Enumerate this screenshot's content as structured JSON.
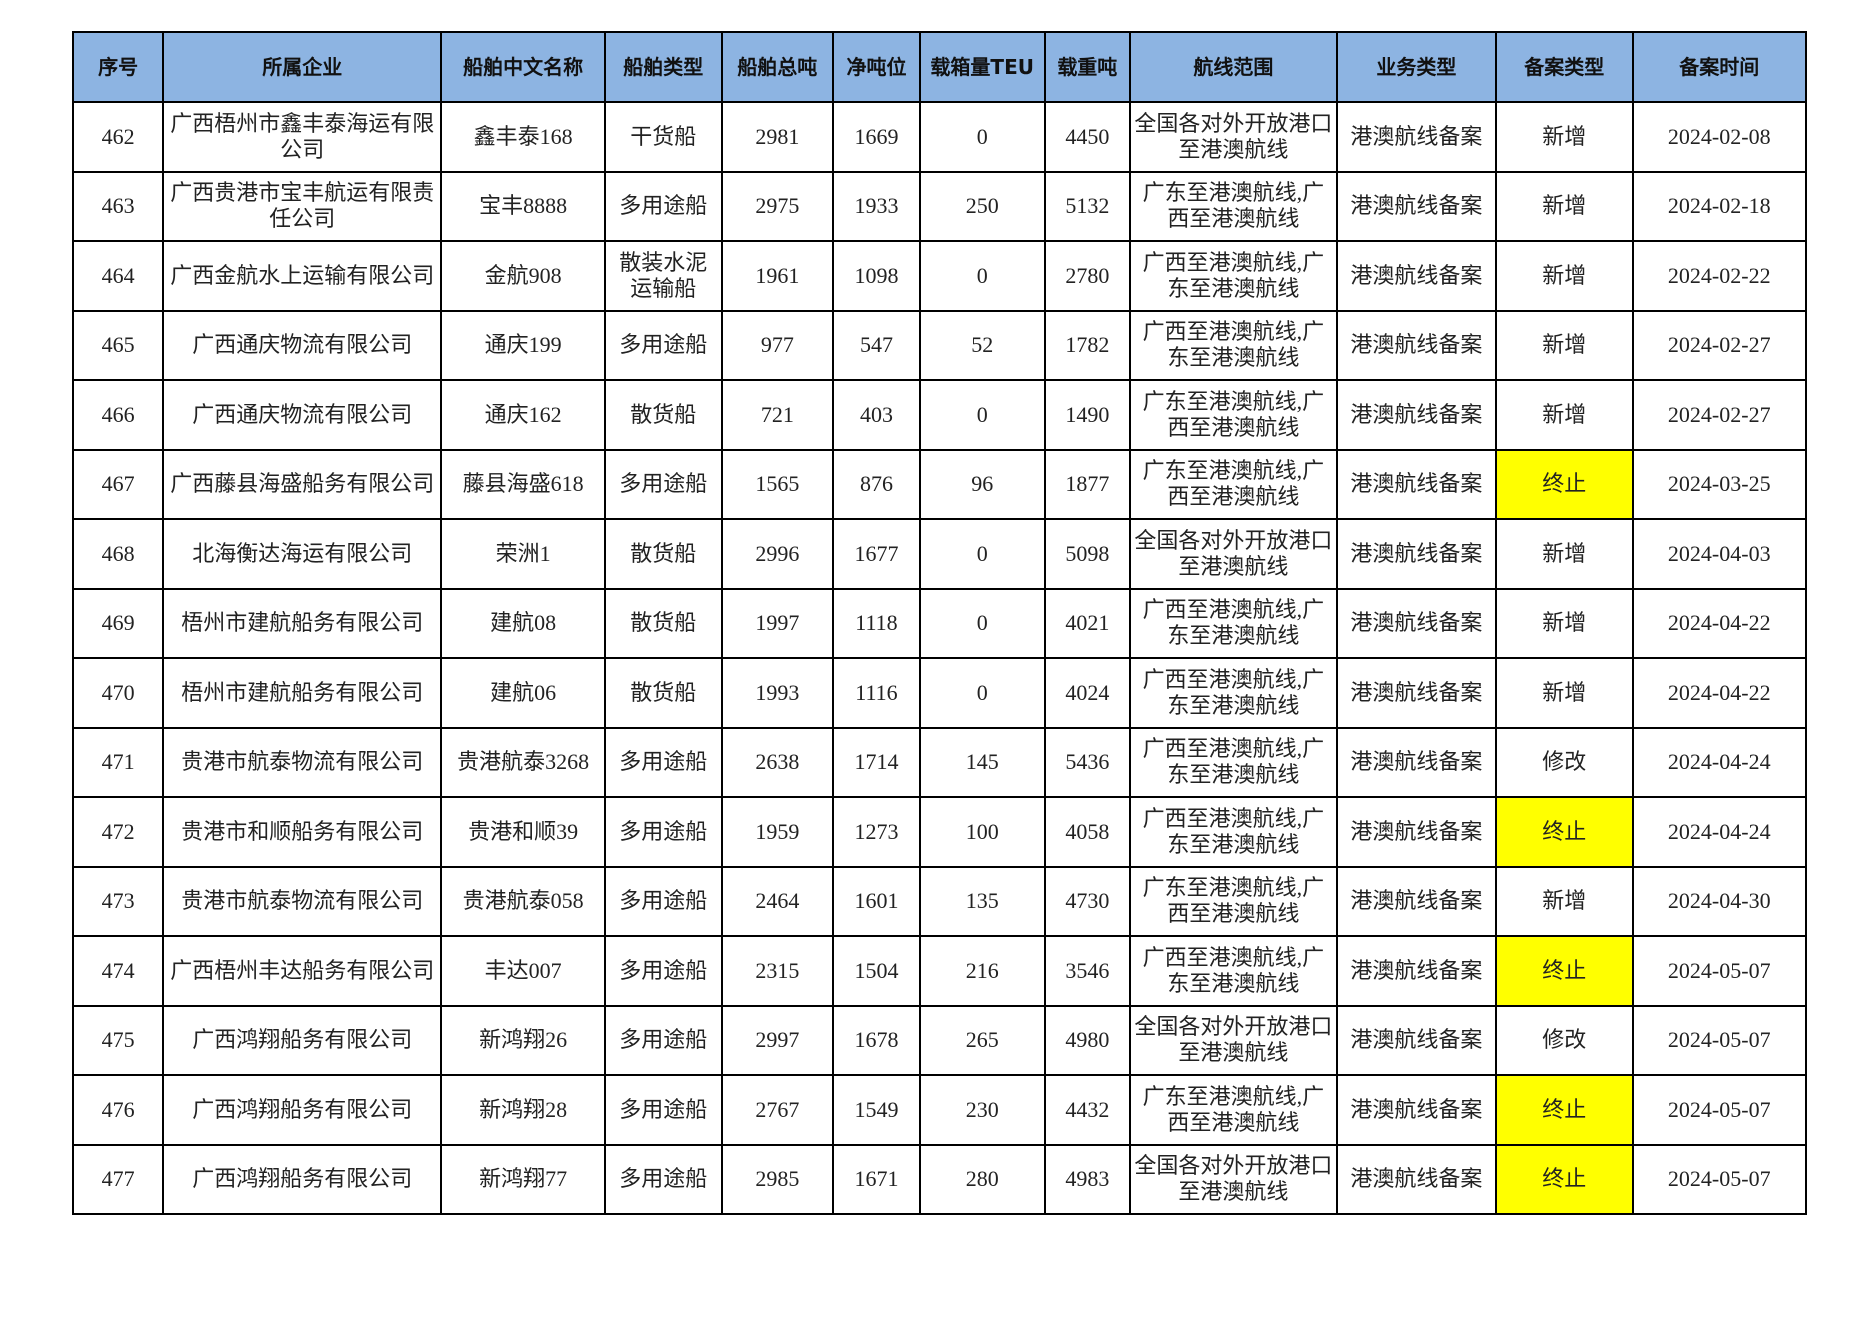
{
  "headers": [
    "序号",
    "所属企业",
    "船舶中文名称",
    "船舶类型",
    "船舶总吨",
    "净吨位",
    "载箱量TEU",
    "载重吨",
    "航线范围",
    "业务类型",
    "备案类型",
    "备案时间"
  ],
  "highlight_color": "#ffff00",
  "header_color": "#8db4e2",
  "rows": [
    [
      "462",
      "广西梧州市鑫丰泰海运有限公司",
      "鑫丰泰168",
      "干货船",
      "2981",
      "1669",
      "0",
      "4450",
      "全国各对外开放港口至港澳航线",
      "港澳航线备案",
      "新增",
      "2024-02-08"
    ],
    [
      "463",
      "广西贵港市宝丰航运有限责任公司",
      "宝丰8888",
      "多用途船",
      "2975",
      "1933",
      "250",
      "5132",
      "广东至港澳航线,广西至港澳航线",
      "港澳航线备案",
      "新增",
      "2024-02-18"
    ],
    [
      "464",
      "广西金航水上运输有限公司",
      "金航908",
      "散装水泥运输船",
      "1961",
      "1098",
      "0",
      "2780",
      "广西至港澳航线,广东至港澳航线",
      "港澳航线备案",
      "新增",
      "2024-02-22"
    ],
    [
      "465",
      "广西通庆物流有限公司",
      "通庆199",
      "多用途船",
      "977",
      "547",
      "52",
      "1782",
      "广西至港澳航线,广东至港澳航线",
      "港澳航线备案",
      "新增",
      "2024-02-27"
    ],
    [
      "466",
      "广西通庆物流有限公司",
      "通庆162",
      "散货船",
      "721",
      "403",
      "0",
      "1490",
      "广东至港澳航线,广西至港澳航线",
      "港澳航线备案",
      "新增",
      "2024-02-27"
    ],
    [
      "467",
      "广西藤县海盛船务有限公司",
      "藤县海盛618",
      "多用途船",
      "1565",
      "876",
      "96",
      "1877",
      "广东至港澳航线,广西至港澳航线",
      "港澳航线备案",
      "终止",
      "2024-03-25"
    ],
    [
      "468",
      "北海衡达海运有限公司",
      "荣洲1",
      "散货船",
      "2996",
      "1677",
      "0",
      "5098",
      "全国各对外开放港口至港澳航线",
      "港澳航线备案",
      "新增",
      "2024-04-03"
    ],
    [
      "469",
      "梧州市建航船务有限公司",
      "建航08",
      "散货船",
      "1997",
      "1118",
      "0",
      "4021",
      "广西至港澳航线,广东至港澳航线",
      "港澳航线备案",
      "新增",
      "2024-04-22"
    ],
    [
      "470",
      "梧州市建航船务有限公司",
      "建航06",
      "散货船",
      "1993",
      "1116",
      "0",
      "4024",
      "广西至港澳航线,广东至港澳航线",
      "港澳航线备案",
      "新增",
      "2024-04-22"
    ],
    [
      "471",
      "贵港市航泰物流有限公司",
      "贵港航泰3268",
      "多用途船",
      "2638",
      "1714",
      "145",
      "5436",
      "广西至港澳航线,广东至港澳航线",
      "港澳航线备案",
      "修改",
      "2024-04-24"
    ],
    [
      "472",
      "贵港市和顺船务有限公司",
      "贵港和顺39",
      "多用途船",
      "1959",
      "1273",
      "100",
      "4058",
      "广西至港澳航线,广东至港澳航线",
      "港澳航线备案",
      "终止",
      "2024-04-24"
    ],
    [
      "473",
      "贵港市航泰物流有限公司",
      "贵港航泰058",
      "多用途船",
      "2464",
      "1601",
      "135",
      "4730",
      "广东至港澳航线,广西至港澳航线",
      "港澳航线备案",
      "新增",
      "2024-04-30"
    ],
    [
      "474",
      "广西梧州丰达船务有限公司",
      "丰达007",
      "多用途船",
      "2315",
      "1504",
      "216",
      "3546",
      "广西至港澳航线,广东至港澳航线",
      "港澳航线备案",
      "终止",
      "2024-05-07"
    ],
    [
      "475",
      "广西鸿翔船务有限公司",
      "新鸿翔26",
      "多用途船",
      "2997",
      "1678",
      "265",
      "4980",
      "全国各对外开放港口至港澳航线",
      "港澳航线备案",
      "修改",
      "2024-05-07"
    ],
    [
      "476",
      "广西鸿翔船务有限公司",
      "新鸿翔28",
      "多用途船",
      "2767",
      "1549",
      "230",
      "4432",
      "广东至港澳航线,广西至港澳航线",
      "港澳航线备案",
      "终止",
      "2024-05-07"
    ],
    [
      "477",
      "广西鸿翔船务有限公司",
      "新鸿翔77",
      "多用途船",
      "2985",
      "1671",
      "280",
      "4983",
      "全国各对外开放港口至港澳航线",
      "港澳航线备案",
      "终止",
      "2024-05-07"
    ]
  ]
}
